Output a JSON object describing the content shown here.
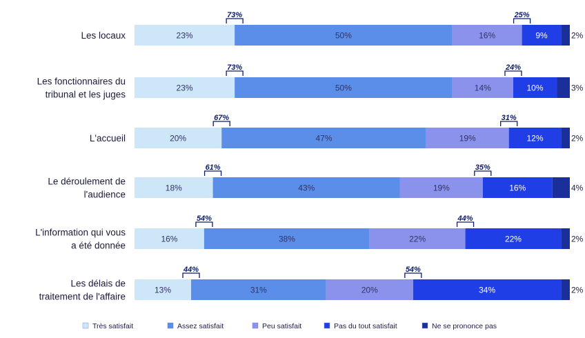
{
  "chart_data": {
    "type": "bar",
    "orientation": "horizontal",
    "stacked": true,
    "normalized_to": 100,
    "categories": [
      [
        "Les locaux"
      ],
      [
        "Les fonctionnaires du",
        "tribunal et les juges"
      ],
      [
        "L'accueil"
      ],
      [
        "Le déroulement de",
        "l'audience"
      ],
      [
        "L'information qui vous",
        "a été donnée"
      ],
      [
        "Les délais de",
        "traitement de l'affaire"
      ]
    ],
    "series": [
      {
        "name": "Très satisfait",
        "color": "#cde6f8",
        "values": [
          23,
          23,
          20,
          18,
          16,
          13
        ]
      },
      {
        "name": "Assez satisfait",
        "color": "#5b8ee8",
        "values": [
          50,
          50,
          47,
          43,
          38,
          31
        ]
      },
      {
        "name": "Peu satisfait",
        "color": "#8a92ec",
        "values": [
          16,
          14,
          19,
          19,
          22,
          20
        ]
      },
      {
        "name": "Pas du tout satisfait",
        "color": "#1f3ee6",
        "values": [
          9,
          10,
          12,
          16,
          22,
          34
        ]
      },
      {
        "name": "Ne se prononce pas",
        "color": "#1a2f9a",
        "values": [
          2,
          3,
          2,
          4,
          2,
          2
        ]
      }
    ],
    "satisfied_totals": [
      "73%",
      "73%",
      "67%",
      "61%",
      "54%",
      "44%"
    ],
    "unsatisfied_totals": [
      "25%",
      "24%",
      "31%",
      "35%",
      "44%",
      "54%"
    ],
    "legend_position": "bottom",
    "grid": false
  }
}
